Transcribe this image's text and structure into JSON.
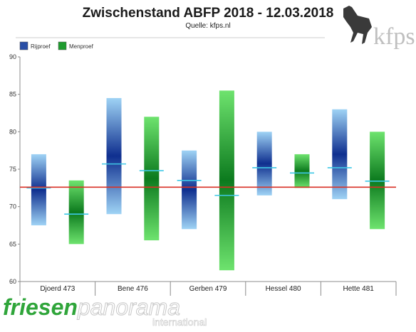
{
  "chart_data": {
    "type": "bar",
    "title": "Zwischenstand ABFP 2018 - 12.03.2018",
    "subtitle": "Quelle: kfps.nl",
    "categories": [
      "Djoerd 473",
      "Bene 476",
      "Gerben 479",
      "Hessel 480",
      "Hette 481"
    ],
    "series": [
      {
        "name": "Rijproef",
        "color": "#2a4fa6",
        "ranges": [
          [
            67.5,
            77
          ],
          [
            69,
            84.5
          ],
          [
            67,
            77.5
          ],
          [
            71.5,
            80
          ],
          [
            71,
            83
          ]
        ],
        "marks": [
          72.5,
          75.7,
          73.5,
          75.2,
          75.2
        ]
      },
      {
        "name": "Menproef",
        "color": "#1e9b2e",
        "ranges": [
          [
            65,
            73.5
          ],
          [
            65.5,
            82
          ],
          [
            61.5,
            85.5
          ],
          [
            72.5,
            77
          ],
          [
            67,
            80
          ]
        ],
        "marks": [
          69,
          74.8,
          71.5,
          74.5,
          73.4
        ]
      }
    ],
    "reference_line": 72.6,
    "reference_color": "#d93025",
    "mark_color": "#3ec8e6",
    "ylim": [
      60,
      90
    ],
    "yticks": [
      60,
      65,
      70,
      75,
      80,
      85,
      90
    ],
    "grid": false,
    "legend": "top-left"
  },
  "logos": {
    "kfps_text": "kfps",
    "brand_part1": "friesen",
    "brand_part2": "panorama",
    "brand_sub": "international"
  }
}
